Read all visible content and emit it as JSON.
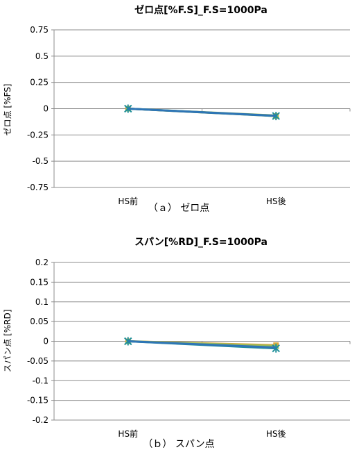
{
  "chart_data": [
    {
      "type": "line",
      "title": "ゼロ点[%F.S]_F.S=1000Pa",
      "ylabel": "ゼロ点 [%FS]",
      "caption": "（ａ） ゼロ点",
      "categories": [
        "HS前",
        "HS後"
      ],
      "ylim": [
        -0.75,
        0.75
      ],
      "yticks": [
        0.75,
        0.5,
        0.25,
        0,
        -0.25,
        -0.5,
        -0.75
      ],
      "ytick_labels": [
        "0.75",
        "0.5",
        "0.25",
        "0",
        "-0.25",
        "-0.5",
        "-0.75"
      ],
      "grid": true,
      "series": [
        {
          "values": [
            0,
            -0.07
          ],
          "color": "#e0a53a",
          "marker": "square"
        },
        {
          "values": [
            0,
            -0.065
          ],
          "color": "#9bbb59",
          "marker": "triangle"
        },
        {
          "values": [
            0,
            -0.07
          ],
          "color": "#1f8f9a",
          "marker": "x"
        },
        {
          "values": [
            0,
            -0.068
          ],
          "color": "#2e75b6",
          "marker": "none"
        }
      ]
    },
    {
      "type": "line",
      "title": "スパン[%RD]_F.S=1000Pa",
      "ylabel": "スパン点 [%RD]",
      "caption": "（ｂ） スパン点",
      "categories": [
        "HS前",
        "HS後"
      ],
      "ylim": [
        -0.2,
        0.2
      ],
      "yticks": [
        0.2,
        0.15,
        0.1,
        0.05,
        0,
        -0.05,
        -0.1,
        -0.15,
        -0.2
      ],
      "ytick_labels": [
        "0.2",
        "0.15",
        "0.1",
        "0.05",
        "0",
        "-0.05",
        "-0.1",
        "-0.15",
        "-0.2"
      ],
      "grid": true,
      "series": [
        {
          "values": [
            0,
            -0.01
          ],
          "color": "#e0a53a",
          "marker": "square"
        },
        {
          "values": [
            0,
            -0.012
          ],
          "color": "#9bbb59",
          "marker": "triangle"
        },
        {
          "values": [
            0,
            -0.018
          ],
          "color": "#1f8f9a",
          "marker": "x"
        },
        {
          "values": [
            0,
            -0.016
          ],
          "color": "#2e75b6",
          "marker": "none"
        }
      ]
    }
  ]
}
